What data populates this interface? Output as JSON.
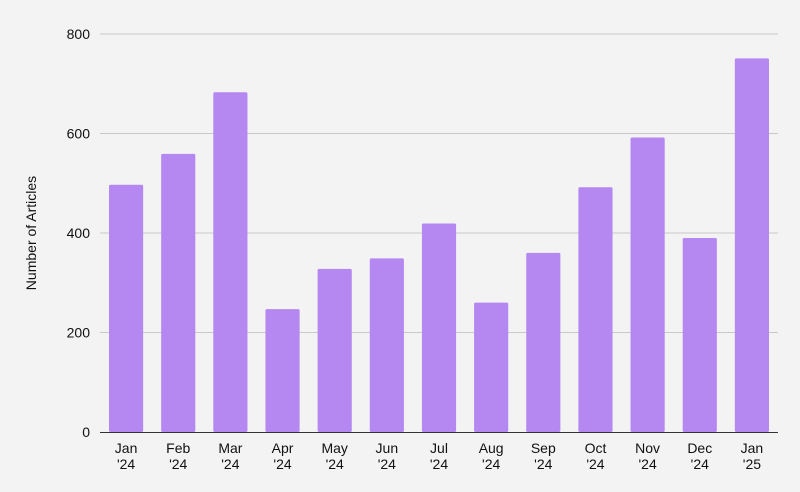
{
  "chart_data": {
    "type": "bar",
    "title": "",
    "xlabel": "",
    "ylabel": "Number of Articles",
    "categories": [
      [
        "Jan",
        "'24"
      ],
      [
        "Feb",
        "'24"
      ],
      [
        "Mar",
        "'24"
      ],
      [
        "Apr",
        "'24"
      ],
      [
        "May",
        "'24"
      ],
      [
        "Jun",
        "'24"
      ],
      [
        "Jul",
        "'24"
      ],
      [
        "Aug",
        "'24"
      ],
      [
        "Sep",
        "'24"
      ],
      [
        "Oct",
        "'24"
      ],
      [
        "Nov",
        "'24"
      ],
      [
        "Dec",
        "'24"
      ],
      [
        "Jan",
        "'25"
      ]
    ],
    "values": [
      497,
      559,
      683,
      247,
      328,
      349,
      419,
      260,
      360,
      492,
      592,
      390,
      751
    ],
    "ylim": [
      0,
      800
    ],
    "yticks": [
      0,
      200,
      400,
      600,
      800
    ],
    "grid": true,
    "legend": "none",
    "bar_color": "#b587f0"
  }
}
